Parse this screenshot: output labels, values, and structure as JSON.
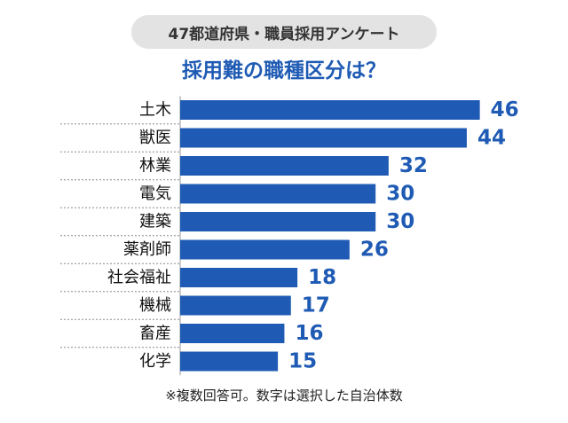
{
  "header": {
    "pill_text": "47都道府県・職員採用アンケート"
  },
  "chart_data": {
    "type": "bar",
    "orientation": "horizontal",
    "title": "採用難の職種区分は？",
    "categories": [
      "土木",
      "獣医",
      "林業",
      "電気",
      "建築",
      "薬剤師",
      "社会福祉",
      "機械",
      "畜産",
      "化学"
    ],
    "values": [
      46,
      44,
      32,
      30,
      30,
      26,
      18,
      17,
      16,
      15
    ],
    "xlim": [
      0,
      50
    ],
    "data_labels": true,
    "bar_color": "#1f5bb4",
    "label_color": "#1f5bb4",
    "separator_style": "dashed"
  },
  "footnote": "※複数回答可。数字は選択した自治体数"
}
